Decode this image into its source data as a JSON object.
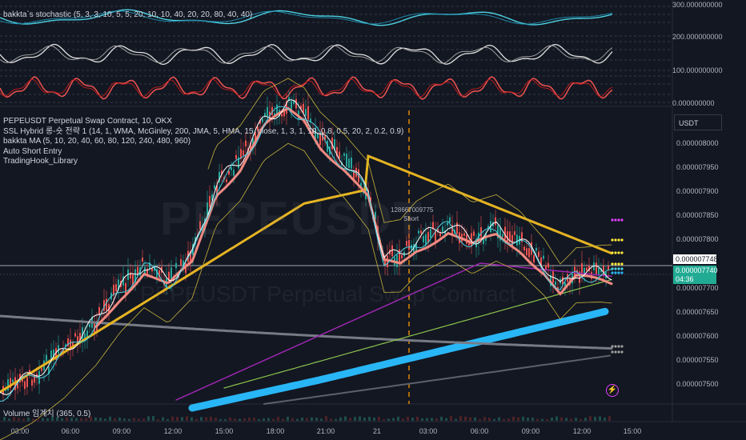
{
  "stoch_panel": {
    "title": "bakkta`s stochastic (5, 3, 3, 10, 5, 5, 20, 10, 10, 40, 20, 20, 80, 40, 40)",
    "axis_labels": [
      "300.000000000",
      "200.000000000",
      "100.000000000",
      "0.000000000"
    ]
  },
  "main_panel": {
    "legend": [
      "PEPEUSDT Perpetual Swap Contract, 10, OKX",
      "SSL Hybrid 롱-숏 전략 1 (14, 1, WMA, McGinley, 200, JMA, 5, HMA, 15, close, 1, 3, 1, 10, 0.8, 0.5, 20, 2, 0.2, 0.9)",
      "bakkta MA (5, 10, 20, 40, 60, 80, 120, 240, 480, 960)",
      "Auto Short Entry",
      "TradingHook_Library"
    ],
    "watermark": "PEPEUSDT",
    "watermark_sub": "PEPEUSDT Perpetual Swap Contract",
    "currency": "USDT",
    "price_labels": [
      "0.000008000",
      "0.000007950",
      "0.000007900",
      "0.000007850",
      "0.000007800",
      "0.000007700",
      "0.000007650",
      "0.000007600",
      "0.000007550",
      "0.000007500"
    ],
    "crosshair_price": "0.000007748",
    "last_price": "0.000007740",
    "countdown": "04:36",
    "annotation_value": "128667009775",
    "annotation_label": "Short",
    "colors": {
      "up": "#26a69a",
      "down": "#ef5350",
      "last_price_bg": "#22ab94",
      "ma_blue": "#29b6f6",
      "ma_yellow": "#e6b422",
      "ma_purple": "#9c27b0"
    }
  },
  "volume_panel": {
    "title": "Volume 임계치 (365, 0.5)"
  },
  "time_axis": [
    "03:00",
    "06:00",
    "09:00",
    "12:00",
    "15:00",
    "18:00",
    "21:00",
    "21",
    "03:00",
    "06:00",
    "09:00",
    "12:00",
    "15:00"
  ]
}
